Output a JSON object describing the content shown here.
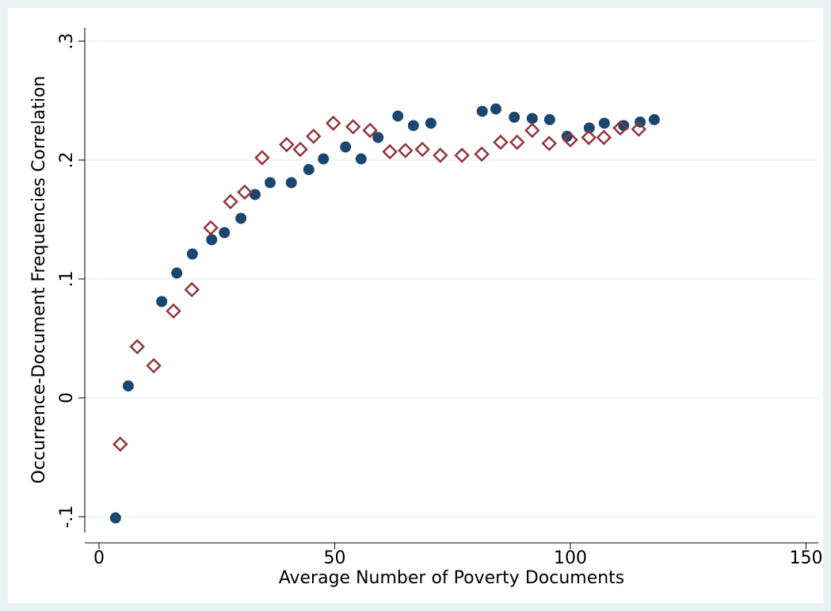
{
  "chart_data": {
    "type": "scatter",
    "x_label": "Average Number of Poverty Documents",
    "y_label": "Occurrence-Document Frequencies Correlation",
    "xlim": [
      -3.03,
      152.6
    ],
    "ylim": [
      -0.1133,
      0.3113
    ],
    "xticks": [
      0,
      50,
      100,
      150
    ],
    "yticks": [
      {
        "value": -0.1,
        "label": "-.1"
      },
      0,
      {
        "value": 0.1,
        "label": ".1"
      },
      {
        "value": 0.2,
        "label": ".2"
      },
      {
        "value": 0.3,
        "label": ".3"
      }
    ],
    "grid": true,
    "series": [
      {
        "color": "#1a476f",
        "marker": "circle",
        "x": [
          3.5,
          6.2,
          13.3,
          16.5,
          19.8,
          23.9,
          26.6,
          30.1,
          33.1,
          36.3,
          40.8,
          44.5,
          47.6,
          52.3,
          55.6,
          59.2,
          63.4,
          66.7,
          70.4,
          81.3,
          84.2,
          88.1,
          91.9,
          95.6,
          99.3,
          104.0,
          107.2,
          111.3,
          114.8,
          117.8
        ],
        "values": [
          -0.101,
          0.01,
          0.081,
          0.105,
          0.121,
          0.133,
          0.139,
          0.151,
          0.171,
          0.181,
          0.181,
          0.192,
          0.201,
          0.211,
          0.201,
          0.219,
          0.237,
          0.229,
          0.231,
          0.241,
          0.243,
          0.236,
          0.235,
          0.234,
          0.22,
          0.227,
          0.231,
          0.229,
          0.232,
          0.234
        ]
      },
      {
        "color": "#90353b",
        "marker": "hollow-diamond",
        "x": [
          4.5,
          8.1,
          11.6,
          15.8,
          19.7,
          23.7,
          27.9,
          30.9,
          34.6,
          39.8,
          42.7,
          45.5,
          49.7,
          53.9,
          57.5,
          61.7,
          65.0,
          68.6,
          72.4,
          77.0,
          81.2,
          85.2,
          88.7,
          91.9,
          95.5,
          100.0,
          103.9,
          107.1,
          110.6,
          114.5
        ],
        "values": [
          -0.039,
          0.043,
          0.027,
          0.073,
          0.091,
          0.143,
          0.165,
          0.173,
          0.202,
          0.213,
          0.209,
          0.22,
          0.231,
          0.228,
          0.225,
          0.207,
          0.208,
          0.209,
          0.204,
          0.204,
          0.205,
          0.215,
          0.215,
          0.225,
          0.214,
          0.217,
          0.219,
          0.219,
          0.227,
          0.226
        ]
      }
    ]
  }
}
